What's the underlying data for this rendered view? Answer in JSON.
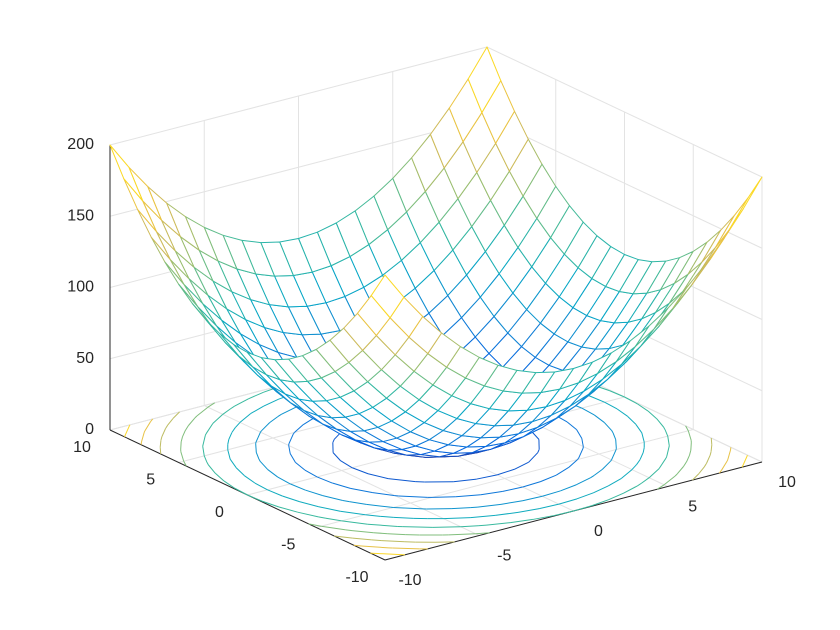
{
  "chart_data": {
    "type": "meshc",
    "x": [
      -10,
      -9,
      -8,
      -7,
      -6,
      -5,
      -4,
      -3,
      -2,
      -1,
      0,
      1,
      2,
      3,
      4,
      5,
      6,
      7,
      8,
      9,
      10
    ],
    "y": [
      -10,
      -9,
      -8,
      -7,
      -6,
      -5,
      -4,
      -3,
      -2,
      -1,
      0,
      1,
      2,
      3,
      4,
      5,
      6,
      7,
      8,
      9,
      10
    ],
    "z": [
      [
        200,
        181,
        164,
        149,
        136,
        125,
        116,
        109,
        104,
        101,
        100,
        101,
        104,
        109,
        116,
        125,
        136,
        149,
        164,
        181,
        200
      ],
      [
        181,
        162,
        145,
        130,
        117,
        106,
        97,
        90,
        85,
        82,
        81,
        82,
        85,
        90,
        97,
        106,
        117,
        130,
        145,
        162,
        181
      ],
      [
        164,
        145,
        128,
        113,
        100,
        89,
        80,
        73,
        68,
        65,
        64,
        65,
        68,
        73,
        80,
        89,
        100,
        113,
        128,
        145,
        164
      ],
      [
        149,
        130,
        113,
        98,
        85,
        74,
        65,
        58,
        53,
        50,
        49,
        50,
        53,
        58,
        65,
        74,
        85,
        98,
        113,
        130,
        149
      ],
      [
        136,
        117,
        100,
        85,
        72,
        61,
        52,
        45,
        40,
        37,
        36,
        37,
        40,
        45,
        52,
        61,
        72,
        85,
        100,
        117,
        136
      ],
      [
        125,
        106,
        89,
        74,
        61,
        50,
        41,
        34,
        29,
        26,
        25,
        26,
        29,
        34,
        41,
        50,
        61,
        74,
        89,
        106,
        125
      ],
      [
        116,
        97,
        80,
        65,
        52,
        41,
        32,
        25,
        20,
        17,
        16,
        17,
        20,
        25,
        32,
        41,
        52,
        65,
        80,
        97,
        116
      ],
      [
        109,
        90,
        73,
        58,
        45,
        34,
        25,
        18,
        13,
        10,
        9,
        10,
        13,
        18,
        25,
        34,
        45,
        58,
        73,
        90,
        109
      ],
      [
        104,
        85,
        68,
        53,
        40,
        29,
        20,
        13,
        8,
        5,
        4,
        5,
        8,
        13,
        20,
        29,
        40,
        53,
        68,
        85,
        104
      ],
      [
        101,
        82,
        65,
        50,
        37,
        26,
        17,
        10,
        5,
        2,
        1,
        2,
        5,
        10,
        17,
        26,
        37,
        50,
        65,
        82,
        101
      ],
      [
        100,
        81,
        64,
        49,
        36,
        25,
        16,
        9,
        4,
        1,
        0,
        1,
        4,
        9,
        16,
        25,
        36,
        49,
        64,
        81,
        100
      ],
      [
        101,
        82,
        65,
        50,
        37,
        26,
        17,
        10,
        5,
        2,
        1,
        2,
        5,
        10,
        17,
        26,
        37,
        50,
        65,
        82,
        101
      ],
      [
        104,
        85,
        68,
        53,
        40,
        29,
        20,
        13,
        8,
        5,
        4,
        5,
        8,
        13,
        20,
        29,
        40,
        53,
        68,
        85,
        104
      ],
      [
        109,
        90,
        73,
        58,
        45,
        34,
        25,
        18,
        13,
        10,
        9,
        10,
        13,
        18,
        25,
        34,
        45,
        58,
        73,
        90,
        109
      ],
      [
        116,
        97,
        80,
        65,
        52,
        41,
        32,
        25,
        20,
        17,
        16,
        17,
        20,
        25,
        32,
        41,
        52,
        65,
        80,
        97,
        116
      ],
      [
        125,
        106,
        89,
        74,
        61,
        50,
        41,
        34,
        29,
        26,
        25,
        26,
        29,
        34,
        41,
        50,
        61,
        74,
        89,
        106,
        125
      ],
      [
        136,
        117,
        100,
        85,
        72,
        61,
        52,
        45,
        40,
        37,
        36,
        37,
        40,
        45,
        52,
        61,
        72,
        85,
        100,
        117,
        136
      ],
      [
        149,
        130,
        113,
        98,
        85,
        74,
        65,
        58,
        53,
        50,
        49,
        50,
        53,
        58,
        65,
        74,
        85,
        98,
        113,
        130,
        149
      ],
      [
        164,
        145,
        128,
        113,
        100,
        89,
        80,
        73,
        68,
        65,
        64,
        65,
        68,
        73,
        80,
        89,
        100,
        113,
        128,
        145,
        164
      ],
      [
        181,
        162,
        145,
        130,
        117,
        106,
        97,
        90,
        85,
        82,
        81,
        82,
        85,
        90,
        97,
        106,
        117,
        130,
        145,
        162,
        181
      ],
      [
        200,
        181,
        164,
        149,
        136,
        125,
        116,
        109,
        104,
        101,
        100,
        101,
        104,
        109,
        116,
        125,
        136,
        149,
        164,
        181,
        200
      ]
    ],
    "contour_levels": [
      20,
      40,
      60,
      80,
      100,
      120,
      140,
      160,
      180
    ],
    "colormap": [
      "#352a87",
      "#0363e1",
      "#1485d4",
      "#06a7c6",
      "#38b99e",
      "#92bf73",
      "#d9ba56",
      "#fcce2e",
      "#f9fb0e"
    ],
    "xlim": [
      -10,
      10
    ],
    "ylim": [
      -10,
      10
    ],
    "zlim": [
      0,
      200
    ],
    "xticks": [
      -10,
      -5,
      0,
      5,
      10
    ],
    "yticks": [
      -10,
      -5,
      0,
      5,
      10
    ],
    "zticks": [
      0,
      50,
      100,
      150,
      200
    ],
    "grid": true
  }
}
